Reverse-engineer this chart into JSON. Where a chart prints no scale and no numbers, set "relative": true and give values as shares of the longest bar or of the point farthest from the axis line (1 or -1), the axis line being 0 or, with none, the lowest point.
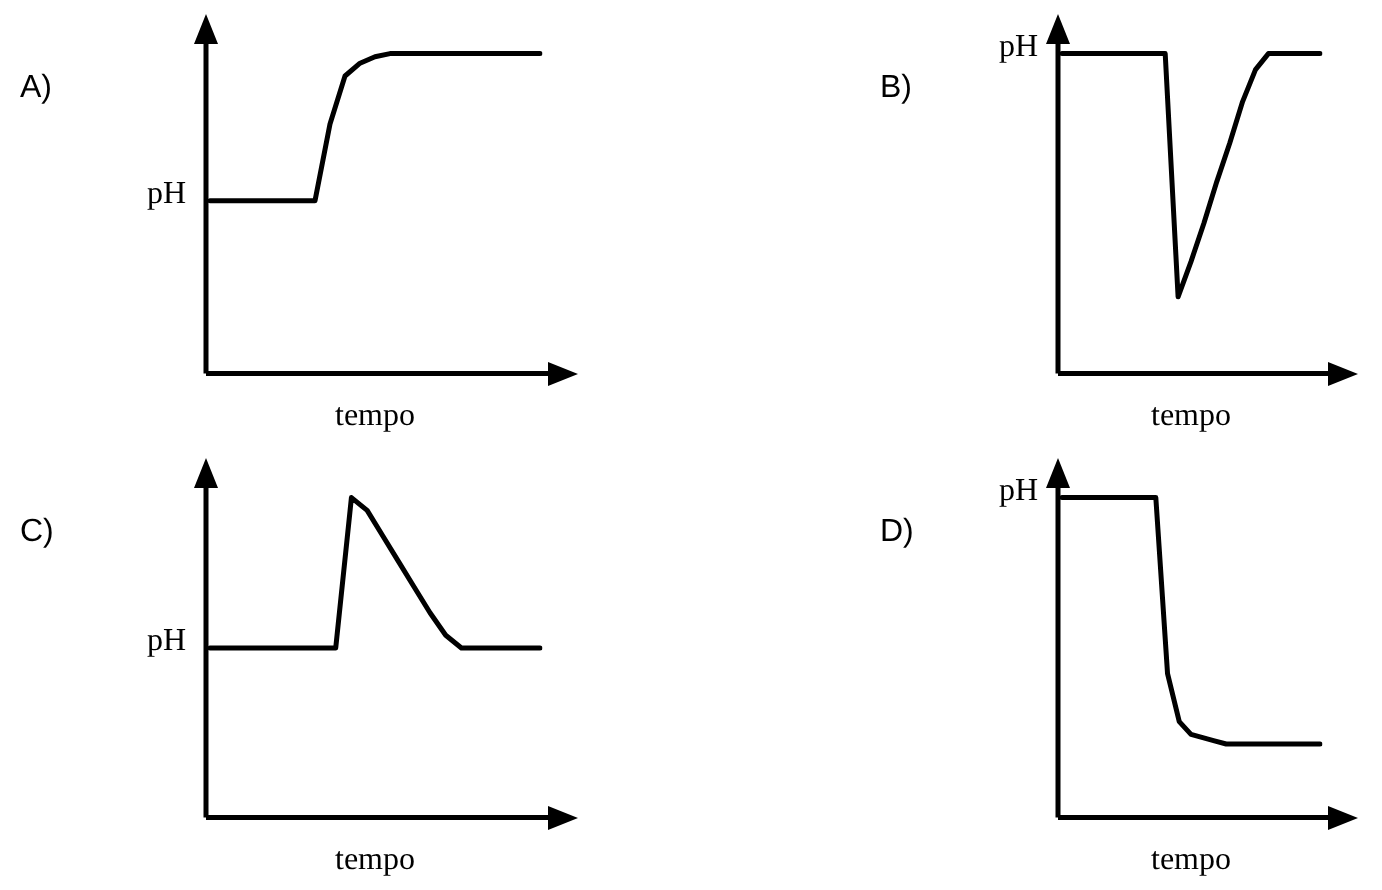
{
  "chart_data": [
    {
      "type": "line",
      "title": "A)",
      "xlabel": "tempo",
      "ylabel": "pH",
      "relative": true,
      "categories": [
        null,
        null,
        null,
        null,
        null,
        null,
        null,
        null,
        null,
        null,
        null,
        null,
        null,
        null,
        null,
        null,
        null,
        null,
        null,
        null,
        null,
        null,
        null
      ],
      "color": "#000000",
      "values": [
        0.54,
        0.54,
        0.54,
        0.54,
        0.54,
        0.54,
        0.54,
        0.54,
        0.78,
        0.93,
        0.97,
        0.99,
        1,
        1,
        1,
        1,
        1,
        1,
        1,
        1,
        1,
        1,
        1
      ]
    },
    {
      "type": "line",
      "title": "B)",
      "xlabel": "tempo",
      "ylabel": "pH",
      "relative": true,
      "categories": [
        null,
        null,
        null,
        null,
        null,
        null,
        null,
        null,
        null,
        null,
        null,
        null,
        null,
        null,
        null,
        null,
        null,
        null,
        null,
        null,
        null
      ],
      "color": "#000000",
      "values": [
        1,
        1,
        1,
        1,
        1,
        1,
        1,
        1,
        1,
        0.24,
        0.35,
        0.47,
        0.6,
        0.72,
        0.85,
        0.95,
        1,
        1,
        1,
        1,
        1
      ]
    },
    {
      "type": "line",
      "title": "C)",
      "xlabel": "tempo",
      "ylabel": "pH",
      "relative": true,
      "categories": [
        null,
        null,
        null,
        null,
        null,
        null,
        null,
        null,
        null,
        null,
        null,
        null,
        null,
        null,
        null,
        null,
        null,
        null,
        null,
        null,
        null,
        null
      ],
      "color": "#000000",
      "values": [
        0.53,
        0.53,
        0.53,
        0.53,
        0.53,
        0.53,
        0.53,
        0.53,
        0.53,
        1,
        0.96,
        0.88,
        0.8,
        0.72,
        0.64,
        0.57,
        0.53,
        0.53,
        0.53,
        0.53,
        0.53,
        0.53
      ]
    },
    {
      "type": "line",
      "title": "D)",
      "xlabel": "tempo",
      "ylabel": "pH",
      "relative": true,
      "categories": [
        null,
        null,
        null,
        null,
        null,
        null,
        null,
        null,
        null,
        null,
        null,
        null,
        null,
        null,
        null,
        null,
        null,
        null,
        null,
        null,
        null,
        null,
        null
      ],
      "color": "#000000",
      "values": [
        1,
        1,
        1,
        1,
        1,
        1,
        1,
        1,
        1,
        0.45,
        0.3,
        0.26,
        0.25,
        0.24,
        0.23,
        0.23,
        0.23,
        0.23,
        0.23,
        0.23,
        0.23,
        0.23,
        0.23
      ]
    }
  ]
}
